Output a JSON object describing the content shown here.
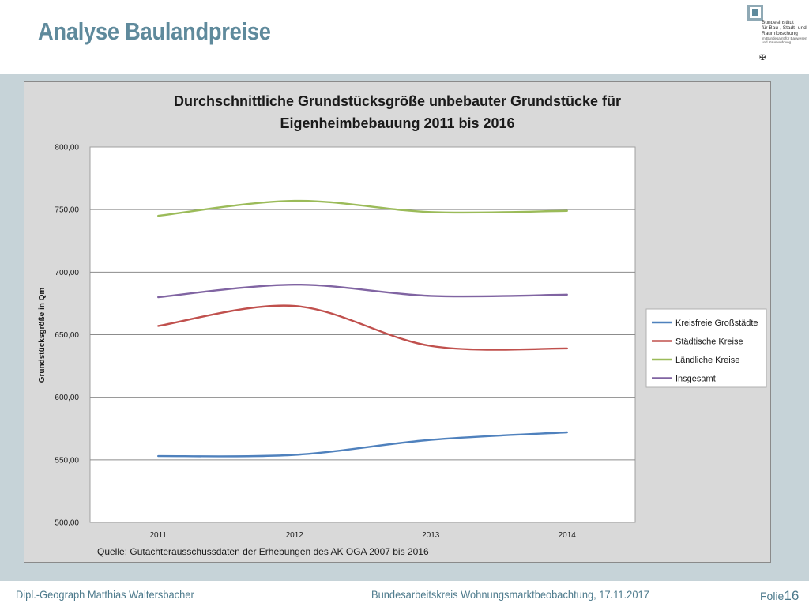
{
  "slide": {
    "title": "Analyse Baulandpreise",
    "footer_left": "Dipl.-Geograph Matthias Waltersbacher",
    "footer_center": "Bundesarbeitskreis Wohnungsmarktbeobachtung, 17.11.2017",
    "footer_label": "Folie",
    "footer_number": "16"
  },
  "logo": {
    "line1": "Bundesinstitut",
    "line2": "für Bau-, Stadt- und",
    "line3": "Raumforschung",
    "line4": "im Bundesamt für Bauwesen",
    "line5": "und Raumordnung"
  },
  "chart_data": {
    "type": "line",
    "title": "Durchschnittliche Grundstücksgröße unbebauter Grundstücke für Eigenheimbebauung 2011 bis 2016",
    "title_lines": [
      "Durchschnittliche Grundstücksgröße unbebauter Grundstücke für",
      "Eigenheimbebauung 2011 bis 2016"
    ],
    "xlabel": "",
    "ylabel": "Grundstücksgröße in Qm",
    "x": [
      "2011",
      "2012",
      "2013",
      "2014"
    ],
    "ylim": [
      500,
      800
    ],
    "yticks": [
      "500,00",
      "550,00",
      "600,00",
      "650,00",
      "700,00",
      "750,00",
      "800,00"
    ],
    "grid": true,
    "legend_position": "right",
    "source": "Quelle: Gutachterausschussdaten der Erhebungen des AK OGA 2007 bis 2016",
    "series": [
      {
        "name": "Kreisfreie Großstädte",
        "color": "#4f81bd",
        "values": [
          553,
          554,
          566,
          572
        ]
      },
      {
        "name": "Städtische Kreise",
        "color": "#c0504d",
        "values": [
          657,
          673,
          641,
          639
        ]
      },
      {
        "name": "Ländliche Kreise",
        "color": "#9bbb59",
        "values": [
          745,
          757,
          748,
          749
        ]
      },
      {
        "name": "Insgesamt",
        "color": "#8064a2",
        "values": [
          680,
          690,
          681,
          682
        ]
      }
    ]
  }
}
